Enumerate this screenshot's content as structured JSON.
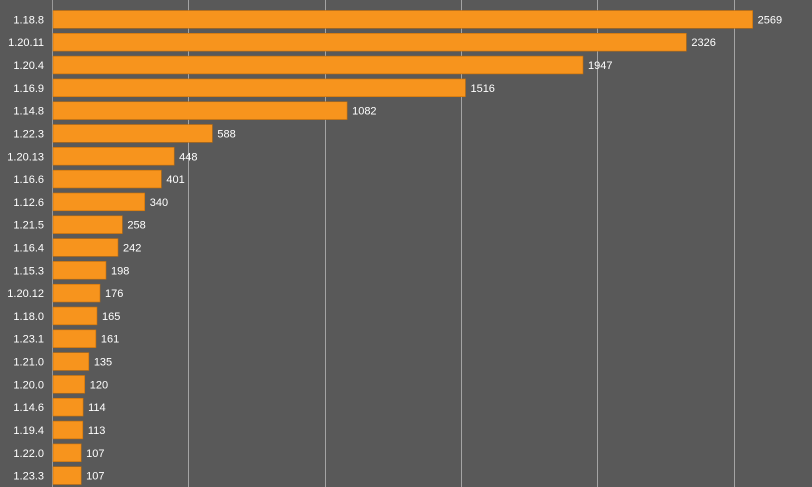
{
  "chart_data": {
    "type": "bar",
    "orientation": "horizontal",
    "title": "",
    "xlabel": "",
    "ylabel": "",
    "xlim": [
      0,
      2750
    ],
    "grid": true,
    "gridlines_at": [
      500,
      1000,
      1500,
      2000,
      2500
    ],
    "categories": [
      "1.18.8",
      "1.20.11",
      "1.20.4",
      "1.16.9",
      "1.14.8",
      "1.22.3",
      "1.20.13",
      "1.16.6",
      "1.12.6",
      "1.21.5",
      "1.16.4",
      "1.15.3",
      "1.20.12",
      "1.18.0",
      "1.23.1",
      "1.21.0",
      "1.20.0",
      "1.14.6",
      "1.19.4",
      "1.22.0",
      "1.23.3"
    ],
    "values": [
      2569,
      2326,
      1947,
      1516,
      1082,
      588,
      448,
      401,
      340,
      258,
      242,
      198,
      176,
      165,
      161,
      135,
      120,
      114,
      113,
      107,
      107
    ],
    "colors": {
      "background": "#595959",
      "bar": "#f7941d",
      "text": "#ffffff",
      "grid": "#bdbdbd"
    }
  }
}
